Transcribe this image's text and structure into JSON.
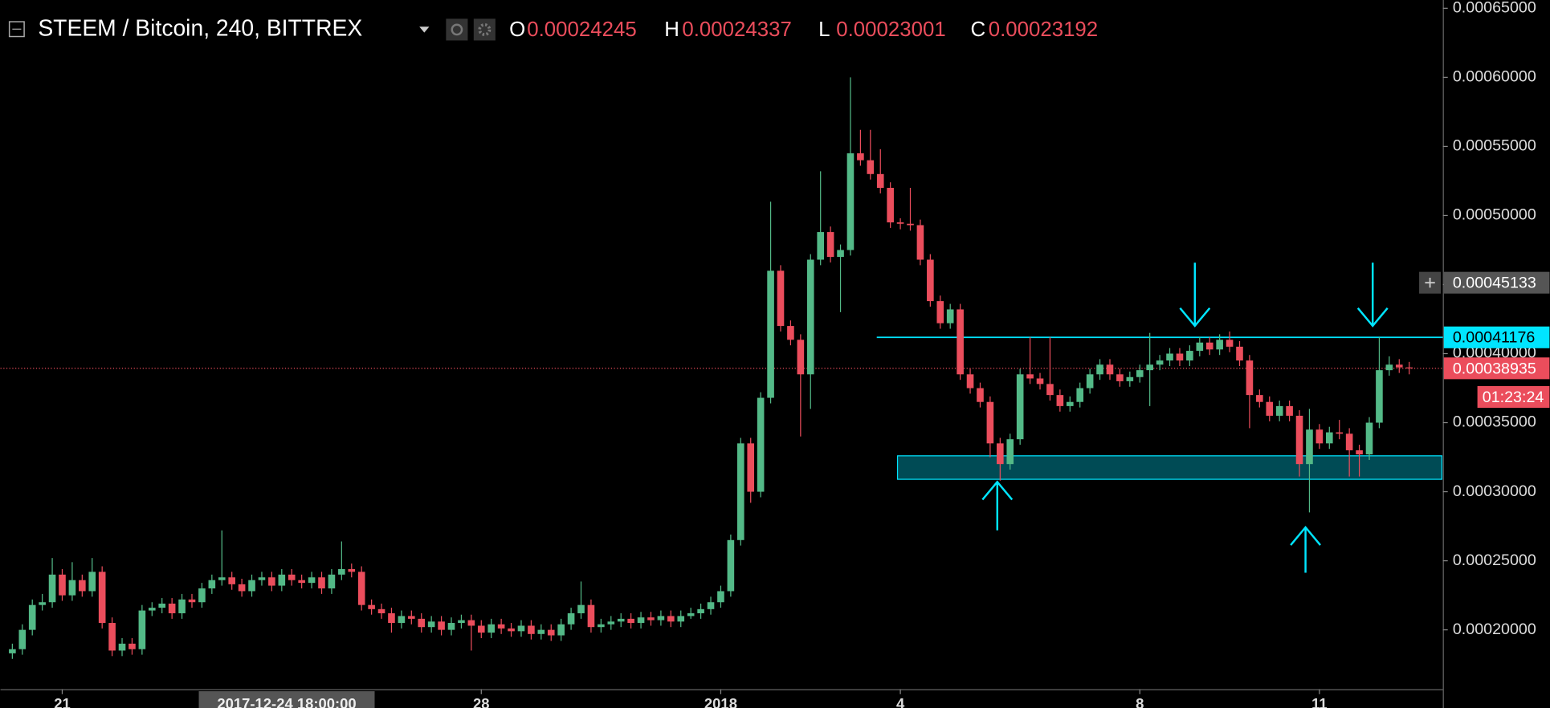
{
  "chart_data": {
    "type": "candlestick",
    "title": "STEEM / Bitcoin, 240, BITTREX",
    "ohlc_labels": [
      "O",
      "H",
      "L",
      "C"
    ],
    "ohlc_values": [
      0.00024245,
      0.00024337,
      0.00023001,
      0.00023192
    ],
    "up_color": "#53b987",
    "down_color": "#eb4d5c",
    "ohlc": [
      [
        0.000183,
        0.00019,
        0.000179,
        0.000186
      ],
      [
        0.000186,
        0.000204,
        0.000182,
        0.0002
      ],
      [
        0.0002,
        0.000222,
        0.000196,
        0.000218
      ],
      [
        0.000218,
        0.000226,
        0.000214,
        0.00022
      ],
      [
        0.00022,
        0.000252,
        0.000216,
        0.00024
      ],
      [
        0.00024,
        0.000244,
        0.000221,
        0.000225
      ],
      [
        0.000225,
        0.000249,
        0.000221,
        0.000236
      ],
      [
        0.000236,
        0.00024,
        0.000224,
        0.000228
      ],
      [
        0.000228,
        0.000252,
        0.000224,
        0.000242
      ],
      [
        0.000242,
        0.000246,
        0.000201,
        0.000205
      ],
      [
        0.000205,
        0.000209,
        0.000181,
        0.000185
      ],
      [
        0.000185,
        0.000194,
        0.000181,
        0.00019
      ],
      [
        0.00019,
        0.000194,
        0.000182,
        0.000186
      ],
      [
        0.000186,
        0.000218,
        0.000182,
        0.000214
      ],
      [
        0.000214,
        0.00022,
        0.00021,
        0.000216
      ],
      [
        0.000216,
        0.000223,
        0.000212,
        0.000219
      ],
      [
        0.000219,
        0.000223,
        0.000208,
        0.000212
      ],
      [
        0.000212,
        0.000226,
        0.000208,
        0.000222
      ],
      [
        0.000222,
        0.000226,
        0.000216,
        0.00022
      ],
      [
        0.00022,
        0.000234,
        0.000216,
        0.00023
      ],
      [
        0.00023,
        0.00024,
        0.000226,
        0.000236
      ],
      [
        0.000236,
        0.000272,
        0.000232,
        0.000238
      ],
      [
        0.000238,
        0.000242,
        0.000229,
        0.000233
      ],
      [
        0.000233,
        0.000237,
        0.000224,
        0.000228
      ],
      [
        0.000228,
        0.00024,
        0.000224,
        0.000236
      ],
      [
        0.000236,
        0.000242,
        0.000232,
        0.000238
      ],
      [
        0.000238,
        0.000242,
        0.000228,
        0.000232
      ],
      [
        0.000232,
        0.000244,
        0.000228,
        0.00024
      ],
      [
        0.00024,
        0.000244,
        0.000232,
        0.000236
      ],
      [
        0.000236,
        0.00024,
        0.00023,
        0.000234
      ],
      [
        0.000234,
        0.000242,
        0.00023,
        0.000238
      ],
      [
        0.000238,
        0.000242,
        0.000226,
        0.00023
      ],
      [
        0.00023,
        0.000244,
        0.000226,
        0.00024
      ],
      [
        0.00024,
        0.000264,
        0.000236,
        0.000244
      ],
      [
        0.000244,
        0.000248,
        0.000238,
        0.000242
      ],
      [
        0.000242,
        0.000246,
        0.000214,
        0.000218
      ],
      [
        0.000218,
        0.000222,
        0.000211,
        0.000215
      ],
      [
        0.000215,
        0.000219,
        0.000208,
        0.000212
      ],
      [
        0.000212,
        0.000216,
        0.000198,
        0.000205
      ],
      [
        0.000205,
        0.000214,
        0.000201,
        0.00021
      ],
      [
        0.00021,
        0.000214,
        0.000204,
        0.000208
      ],
      [
        0.000208,
        0.000212,
        0.000198,
        0.000202
      ],
      [
        0.000202,
        0.00021,
        0.000198,
        0.000206
      ],
      [
        0.000206,
        0.00021,
        0.000196,
        0.0002
      ],
      [
        0.0002,
        0.000209,
        0.000196,
        0.000205
      ],
      [
        0.000205,
        0.000211,
        0.000201,
        0.000207
      ],
      [
        0.000207,
        0.000211,
        0.000185,
        0.000203
      ],
      [
        0.000203,
        0.000207,
        0.000194,
        0.000198
      ],
      [
        0.000198,
        0.000208,
        0.000194,
        0.000204
      ],
      [
        0.000204,
        0.000208,
        0.000197,
        0.000201
      ],
      [
        0.000201,
        0.000205,
        0.000195,
        0.000199
      ],
      [
        0.000199,
        0.000207,
        0.000195,
        0.000203
      ],
      [
        0.000203,
        0.000207,
        0.000193,
        0.000197
      ],
      [
        0.000197,
        0.000204,
        0.000193,
        0.0002
      ],
      [
        0.0002,
        0.000204,
        0.000192,
        0.000196
      ],
      [
        0.000196,
        0.000208,
        0.000192,
        0.000204
      ],
      [
        0.000204,
        0.000216,
        0.0002,
        0.000212
      ],
      [
        0.000212,
        0.000235,
        0.000208,
        0.000218
      ],
      [
        0.000218,
        0.000222,
        0.000198,
        0.000202
      ],
      [
        0.000202,
        0.000208,
        0.000198,
        0.000204
      ],
      [
        0.000204,
        0.00021,
        0.0002,
        0.000206
      ],
      [
        0.000206,
        0.000212,
        0.000202,
        0.000208
      ],
      [
        0.000208,
        0.000212,
        0.000201,
        0.000205
      ],
      [
        0.000205,
        0.000213,
        0.000201,
        0.000209
      ],
      [
        0.000209,
        0.000213,
        0.000203,
        0.000207
      ],
      [
        0.000207,
        0.000214,
        0.000203,
        0.00021
      ],
      [
        0.00021,
        0.000214,
        0.000202,
        0.000206
      ],
      [
        0.000206,
        0.000214,
        0.000202,
        0.00021
      ],
      [
        0.00021,
        0.000216,
        0.000208,
        0.000212
      ],
      [
        0.000212,
        0.000219,
        0.000208,
        0.000215
      ],
      [
        0.000215,
        0.000224,
        0.000211,
        0.00022
      ],
      [
        0.00022,
        0.000232,
        0.000216,
        0.000228
      ],
      [
        0.000228,
        0.000269,
        0.000224,
        0.000265
      ],
      [
        0.000265,
        0.000339,
        0.000261,
        0.000335
      ],
      [
        0.000335,
        0.000339,
        0.000292,
        0.0003
      ],
      [
        0.0003,
        0.000372,
        0.000296,
        0.000368
      ],
      [
        0.000368,
        0.00051,
        0.000364,
        0.00046
      ],
      [
        0.00046,
        0.000464,
        0.000416,
        0.00042
      ],
      [
        0.00042,
        0.000424,
        0.000406,
        0.00041
      ],
      [
        0.00041,
        0.000414,
        0.00034,
        0.000385
      ],
      [
        0.000385,
        0.000472,
        0.00036,
        0.000468
      ],
      [
        0.000468,
        0.000532,
        0.000464,
        0.000488
      ],
      [
        0.000488,
        0.000492,
        0.000466,
        0.00047
      ],
      [
        0.00047,
        0.000479,
        0.00043,
        0.000475
      ],
      [
        0.000475,
        0.0006,
        0.000471,
        0.000545
      ],
      [
        0.000545,
        0.000562,
        0.000536,
        0.00054
      ],
      [
        0.00054,
        0.000562,
        0.000526,
        0.00053
      ],
      [
        0.00053,
        0.000548,
        0.000516,
        0.00052
      ],
      [
        0.00052,
        0.000524,
        0.000491,
        0.000495
      ],
      [
        0.000495,
        0.000498,
        0.00049,
        0.000494
      ],
      [
        0.000494,
        0.00052,
        0.000489,
        0.000493
      ],
      [
        0.000493,
        0.000497,
        0.000464,
        0.000468
      ],
      [
        0.000468,
        0.000472,
        0.000434,
        0.000438
      ],
      [
        0.000438,
        0.000442,
        0.000418,
        0.000422
      ],
      [
        0.000422,
        0.000436,
        0.000418,
        0.000432
      ],
      [
        0.000432,
        0.000436,
        0.000381,
        0.000385
      ],
      [
        0.000385,
        0.000389,
        0.000371,
        0.000375
      ],
      [
        0.000375,
        0.000379,
        0.000361,
        0.000365
      ],
      [
        0.000365,
        0.000369,
        0.000325,
        0.000335
      ],
      [
        0.000335,
        0.000339,
        0.000308,
        0.00032
      ],
      [
        0.00032,
        0.000342,
        0.000316,
        0.000338
      ],
      [
        0.000338,
        0.000389,
        0.000334,
        0.000385
      ],
      [
        0.000385,
        0.000412,
        0.000378,
        0.000382
      ],
      [
        0.000382,
        0.000386,
        0.000374,
        0.000378
      ],
      [
        0.000378,
        0.000412,
        0.000366,
        0.00037
      ],
      [
        0.00037,
        0.000374,
        0.000358,
        0.000362
      ],
      [
        0.000362,
        0.000369,
        0.000358,
        0.000365
      ],
      [
        0.000365,
        0.000379,
        0.000361,
        0.000375
      ],
      [
        0.000375,
        0.000389,
        0.000371,
        0.000385
      ],
      [
        0.000385,
        0.000396,
        0.000381,
        0.000392
      ],
      [
        0.000392,
        0.000396,
        0.000381,
        0.000385
      ],
      [
        0.000385,
        0.000389,
        0.000376,
        0.00038
      ],
      [
        0.00038,
        0.000387,
        0.000376,
        0.000383
      ],
      [
        0.000383,
        0.000392,
        0.000379,
        0.000388
      ],
      [
        0.000388,
        0.000415,
        0.000362,
        0.000392
      ],
      [
        0.000392,
        0.000399,
        0.000388,
        0.000395
      ],
      [
        0.000395,
        0.000404,
        0.000391,
        0.0004
      ],
      [
        0.0004,
        0.000404,
        0.000391,
        0.000395
      ],
      [
        0.000395,
        0.000406,
        0.000391,
        0.000402
      ],
      [
        0.000402,
        0.000412,
        0.000398,
        0.000408
      ],
      [
        0.000408,
        0.000412,
        0.000399,
        0.000403
      ],
      [
        0.000403,
        0.000414,
        0.000399,
        0.00041
      ],
      [
        0.00041,
        0.000416,
        0.000401,
        0.000405
      ],
      [
        0.000405,
        0.000409,
        0.000391,
        0.000395
      ],
      [
        0.000395,
        0.000399,
        0.000346,
        0.00037
      ],
      [
        0.00037,
        0.000374,
        0.000361,
        0.000365
      ],
      [
        0.000365,
        0.000369,
        0.000351,
        0.000355
      ],
      [
        0.000355,
        0.000366,
        0.000351,
        0.000362
      ],
      [
        0.000362,
        0.000366,
        0.000351,
        0.000355
      ],
      [
        0.000355,
        0.000359,
        0.000311,
        0.00032
      ],
      [
        0.00032,
        0.00036,
        0.000285,
        0.000345
      ],
      [
        0.000345,
        0.000349,
        0.000331,
        0.000335
      ],
      [
        0.000335,
        0.000347,
        0.000331,
        0.000343
      ],
      [
        0.000343,
        0.000352,
        0.000338,
        0.000342
      ],
      [
        0.000342,
        0.000346,
        0.000311,
        0.00033
      ],
      [
        0.00033,
        0.000334,
        0.000311,
        0.000327
      ],
      [
        0.000327,
        0.000354,
        0.000323,
        0.00035
      ],
      [
        0.00035,
        0.00041176,
        0.000346,
        0.000388
      ],
      [
        0.000388,
        0.000398,
        0.000384,
        0.000392
      ],
      [
        0.000392,
        0.000396,
        0.000386,
        0.00039
      ],
      [
        0.00039,
        0.000394,
        0.000385,
        0.00038935
      ]
    ],
    "xlim": [
      -1.19,
      143.37
    ],
    "xticks": [
      {
        "value": 5,
        "label": "21"
      },
      {
        "value": 47,
        "label": "28"
      },
      {
        "value": 71,
        "label": "2018"
      },
      {
        "value": 89,
        "label": "4"
      },
      {
        "value": 113,
        "label": "8"
      },
      {
        "value": 131,
        "label": "11"
      }
    ],
    "crosshair": {
      "x": {
        "value": 27.5,
        "label": "2017-12-24 18:00:00"
      },
      "y": 0.00045133
    },
    "ylim": [
      0.000157,
      0.000656
    ],
    "yticks": [
      {
        "value": 0.0002,
        "label": "0.00020000"
      },
      {
        "value": 0.00025,
        "label": "0.00025000"
      },
      {
        "value": 0.0003,
        "label": "0.00030000"
      },
      {
        "value": 0.00035,
        "label": "0.00035000"
      },
      {
        "value": 0.0004,
        "label": "0.00040000"
      },
      {
        "value": 0.00045,
        "label": "0.00045000"
      },
      {
        "value": 0.0005,
        "label": "0.00050000"
      },
      {
        "value": 0.00055,
        "label": "0.00055000"
      },
      {
        "value": 0.0006,
        "label": "0.00060000"
      },
      {
        "value": 0.00065,
        "label": "0.00065000"
      }
    ],
    "resistance": {
      "value": 0.00041176,
      "color": "#00e5ff"
    },
    "support_zone": [
      0.000309,
      0.000326
    ],
    "last_price": 0.00038935,
    "countdown": "01:23:24"
  }
}
